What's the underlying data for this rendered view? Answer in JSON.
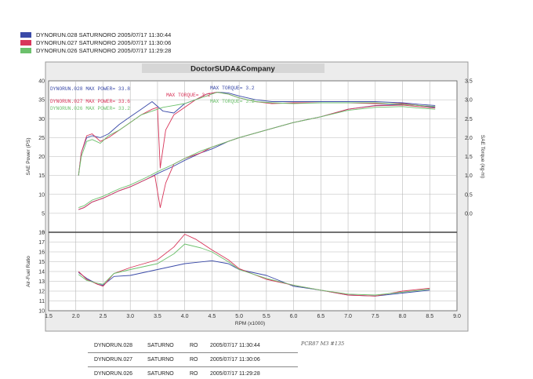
{
  "header_legend": [
    {
      "label": "DYNORUN.028  SATURNORO  2005/07/17 11:30:44",
      "color": "#3a4aa8"
    },
    {
      "label": "DYNORUN.027  SATURNORO  2005/07/17 11:30:06",
      "color": "#d8365a"
    },
    {
      "label": "DYNORUN.026  SATURNORO  2005/07/17 11:29:28",
      "color": "#6cc06c"
    }
  ],
  "chart_data": {
    "type": "line",
    "title": "DoctorSUDA&Company",
    "xlabel": "RPM (x1000)",
    "xlim": [
      1.5,
      9.0
    ],
    "x_ticks": [
      "1.5",
      "2.0",
      "2.5",
      "3.0",
      "3.5",
      "4.0",
      "4.5",
      "5.0",
      "5.5",
      "6.0",
      "6.5",
      "7.0",
      "7.5",
      "8.0",
      "8.5",
      "9.0"
    ],
    "upper": {
      "ylabel_left": "SAE Power (PS)",
      "ylabel_right": "SAE Torque (kg-m)",
      "ylim_left": [
        0,
        40
      ],
      "ylim_right": [
        -0.5,
        3.5
      ],
      "left_ticks": [
        "40",
        "35",
        "30",
        "25",
        "20",
        "15",
        "10",
        "5",
        "0"
      ],
      "right_ticks": [
        "3.5",
        "3.0",
        "2.5",
        "2.0",
        "1.5",
        "1.0",
        "0.5",
        "0.0"
      ],
      "annotations": [
        {
          "text": "DYNORUN.028  MAX POWER= 33.8",
          "color": "#3a4aa8"
        },
        {
          "text": "DYNORUN.027  MAX POWER= 33.6",
          "color": "#d8365a"
        },
        {
          "text": "DYNORUN.026  MAX POWER= 33.2",
          "color": "#6cc06c"
        },
        {
          "text": "MAX TORQUE= 3.2",
          "color": "#3a4aa8"
        },
        {
          "text": "MAX TORQUE= 3.2",
          "color": "#d8365a"
        },
        {
          "text": "MAX TORQUE= 3.2",
          "color": "#6cc06c"
        }
      ],
      "power_series": [
        {
          "color": "#3a4aa8",
          "x": [
            2.05,
            2.15,
            2.3,
            2.5,
            2.8,
            3.0,
            3.3,
            3.5,
            3.8,
            4.0,
            4.3,
            4.5,
            4.8,
            5.0,
            5.5,
            6.0,
            6.5,
            7.0,
            7.5,
            8.0,
            8.3,
            8.6
          ],
          "y": [
            6,
            6.5,
            8,
            9,
            11,
            12,
            14,
            15.5,
            17.5,
            19,
            21,
            22,
            24,
            25,
            27,
            29,
            30.5,
            32.5,
            33.5,
            33.8,
            33.5,
            33
          ]
        },
        {
          "color": "#d8365a",
          "x": [
            2.05,
            2.15,
            2.3,
            2.5,
            2.8,
            3.0,
            3.3,
            3.45,
            3.55,
            3.65,
            3.8,
            4.0,
            4.3,
            4.5,
            4.8,
            5.0,
            5.5,
            6.0,
            6.5,
            7.0,
            7.5,
            8.0,
            8.3,
            8.6
          ],
          "y": [
            6,
            6.5,
            8,
            9,
            11,
            12,
            14,
            15,
            6.5,
            13,
            18,
            19.5,
            21,
            22.5,
            24,
            25,
            27,
            29,
            30.5,
            32.5,
            33.4,
            33.6,
            33.2,
            32.8
          ]
        },
        {
          "color": "#6cc06c",
          "x": [
            2.05,
            2.15,
            2.3,
            2.5,
            2.8,
            3.0,
            3.3,
            3.5,
            3.8,
            4.0,
            4.3,
            4.5,
            4.8,
            5.0,
            5.5,
            6.0,
            6.5,
            7.0,
            7.5,
            8.0,
            8.3,
            8.6
          ],
          "y": [
            6.5,
            7,
            8.5,
            9.5,
            11.5,
            12.5,
            14.5,
            16,
            18,
            19.5,
            21.5,
            22.5,
            24,
            25,
            27,
            29,
            30.5,
            32.2,
            33,
            33.2,
            32.8,
            32.5
          ]
        }
      ],
      "torque_series": [
        {
          "color": "#3a4aa8",
          "x": [
            2.05,
            2.1,
            2.2,
            2.3,
            2.45,
            2.6,
            2.8,
            3.0,
            3.2,
            3.4,
            3.6,
            3.8,
            4.0,
            4.2,
            4.4,
            4.6,
            4.8,
            5.0,
            5.3,
            5.6,
            6.0,
            6.5,
            7.0,
            7.5,
            8.0,
            8.3,
            8.6
          ],
          "y": [
            1.0,
            1.6,
            2.0,
            2.05,
            2.0,
            2.1,
            2.35,
            2.55,
            2.75,
            2.95,
            2.7,
            2.65,
            2.9,
            3.0,
            3.15,
            3.2,
            3.18,
            3.1,
            3.0,
            2.95,
            2.95,
            2.95,
            2.95,
            2.95,
            2.92,
            2.88,
            2.85
          ]
        },
        {
          "color": "#d8365a",
          "x": [
            2.05,
            2.1,
            2.2,
            2.3,
            2.45,
            2.6,
            2.8,
            3.0,
            3.2,
            3.4,
            3.5,
            3.55,
            3.65,
            3.8,
            4.0,
            4.2,
            4.4,
            4.6,
            4.8,
            5.0,
            5.3,
            5.6,
            6.0,
            6.5,
            7.0,
            7.5,
            8.0,
            8.3,
            8.6
          ],
          "y": [
            1.0,
            1.6,
            2.05,
            2.1,
            1.9,
            2.0,
            2.2,
            2.4,
            2.6,
            2.75,
            2.8,
            1.2,
            2.2,
            2.6,
            2.8,
            3.0,
            3.15,
            3.2,
            3.15,
            3.05,
            2.95,
            2.9,
            2.92,
            2.92,
            2.92,
            2.9,
            2.9,
            2.85,
            2.82
          ]
        },
        {
          "color": "#6cc06c",
          "x": [
            2.05,
            2.1,
            2.2,
            2.3,
            2.45,
            2.6,
            2.8,
            3.0,
            3.2,
            3.4,
            3.6,
            3.8,
            4.0,
            4.2,
            4.4,
            4.6,
            4.8,
            5.0,
            5.3,
            5.6,
            6.0,
            6.5,
            7.0,
            7.5,
            8.0,
            8.3,
            8.6
          ],
          "y": [
            1.0,
            1.5,
            1.9,
            1.95,
            1.85,
            2.05,
            2.2,
            2.4,
            2.6,
            2.7,
            2.8,
            2.85,
            2.9,
            3.0,
            3.1,
            3.2,
            3.15,
            3.05,
            2.95,
            2.92,
            2.9,
            2.92,
            2.92,
            2.92,
            2.88,
            2.85,
            2.82
          ]
        }
      ]
    },
    "lower": {
      "ylabel": "Air-Fuel Ratio",
      "ylim": [
        10,
        18
      ],
      "ticks": [
        "18",
        "17",
        "16",
        "15",
        "14",
        "13",
        "12",
        "11",
        "10"
      ],
      "series": [
        {
          "color": "#3a4aa8",
          "x": [
            2.05,
            2.2,
            2.4,
            2.5,
            2.7,
            3.0,
            3.5,
            4.0,
            4.5,
            4.8,
            5.0,
            5.5,
            6.0,
            6.5,
            7.0,
            7.5,
            8.0,
            8.5
          ],
          "y": [
            13.9,
            13.3,
            12.7,
            12.6,
            13.5,
            13.6,
            14.2,
            14.8,
            15.1,
            14.8,
            14.2,
            13.6,
            12.5,
            12.1,
            11.6,
            11.5,
            11.8,
            12.1
          ]
        },
        {
          "color": "#d8365a",
          "x": [
            2.05,
            2.2,
            2.4,
            2.5,
            2.7,
            3.0,
            3.5,
            3.8,
            4.0,
            4.2,
            4.5,
            4.8,
            5.0,
            5.5,
            6.0,
            6.5,
            7.0,
            7.5,
            8.0,
            8.5
          ],
          "y": [
            14.0,
            13.2,
            12.7,
            12.5,
            13.8,
            14.4,
            15.2,
            16.5,
            17.8,
            17.3,
            16.2,
            15.2,
            14.3,
            13.2,
            12.6,
            12.1,
            11.6,
            11.5,
            12.0,
            12.3
          ]
        },
        {
          "color": "#6cc06c",
          "x": [
            2.05,
            2.2,
            2.4,
            2.5,
            2.7,
            3.0,
            3.5,
            3.8,
            4.0,
            4.3,
            4.5,
            4.8,
            5.0,
            5.5,
            6.0,
            6.5,
            7.0,
            7.5,
            8.0,
            8.5
          ],
          "y": [
            13.7,
            13.1,
            12.8,
            12.7,
            13.8,
            14.2,
            14.8,
            15.8,
            16.8,
            16.4,
            16.0,
            15.0,
            14.2,
            13.3,
            12.6,
            12.1,
            11.7,
            11.6,
            11.9,
            12.2
          ]
        }
      ]
    }
  },
  "bottom_table": [
    [
      "DYNORUN.028",
      "SATURNO",
      "RO",
      "2005/07/17 11:30:44"
    ],
    [
      "DYNORUN.027",
      "SATURNO",
      "RO",
      "2005/07/17 11:30:06"
    ],
    [
      "DYNORUN.026",
      "SATURNO",
      "RO",
      "2005/07/17 11:29:28"
    ]
  ],
  "handwritten_note": "PCR87  M3  #135"
}
